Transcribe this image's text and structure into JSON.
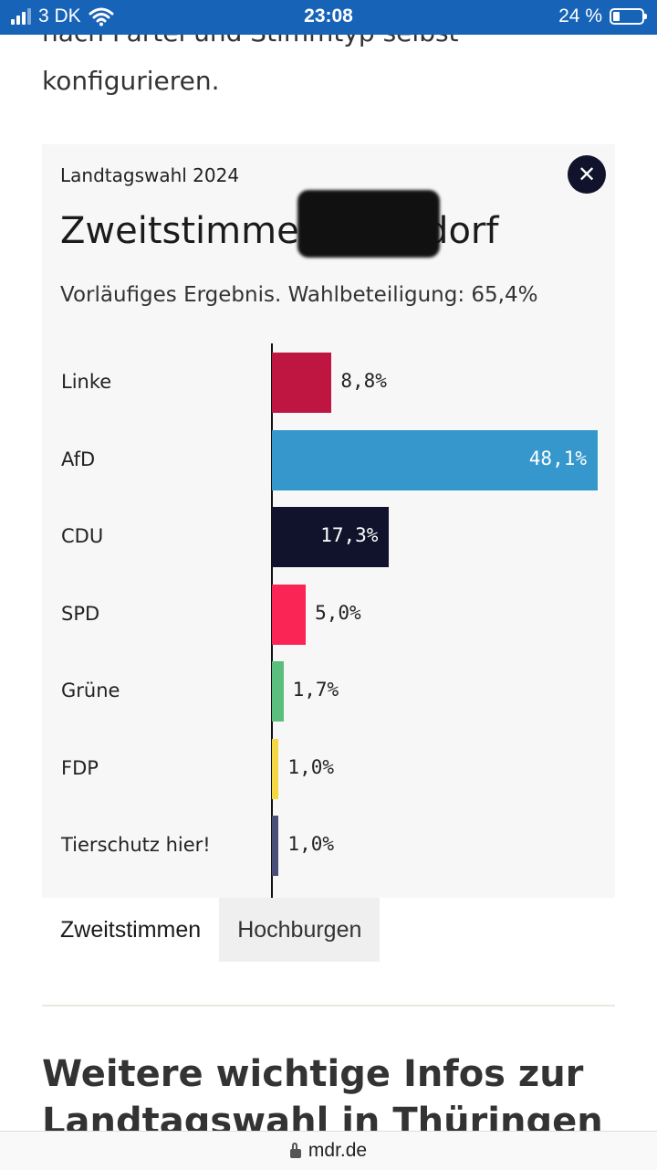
{
  "status_bar": {
    "carrier": "3 DK",
    "time": "23:08",
    "battery": "24 %"
  },
  "article": {
    "cut_line": "nach Partei und Stimmtyp selbst",
    "intro_line": "konfigurieren."
  },
  "widget": {
    "overline": "Landtagswahl 2024",
    "title": "Zweitstimmen Kühndorf",
    "subtitle": "Vorläufiges Ergebnis. Wahlbeteiligung: 65,4%",
    "close_icon": "close-icon"
  },
  "chart_data": {
    "type": "bar",
    "orientation": "horizontal",
    "categories": [
      "Linke",
      "AfD",
      "CDU",
      "SPD",
      "Grüne",
      "FDP",
      "Tierschutz hier!"
    ],
    "values": [
      8.8,
      48.1,
      17.3,
      5.0,
      1.7,
      1.0,
      1.0
    ],
    "value_labels": [
      "8,8%",
      "48,1%",
      "17,3%",
      "5,0%",
      "1,7%",
      "1,0%",
      "1,0%"
    ],
    "colors": [
      "#be1640",
      "#3597cb",
      "#10132b",
      "#fa2455",
      "#5bbe7e",
      "#f3d743",
      "#4a4f78"
    ],
    "label_inside": [
      false,
      true,
      true,
      false,
      false,
      false,
      false
    ],
    "xlim": [
      0,
      48.1
    ]
  },
  "tabs": [
    {
      "label": "Zweitstimmen",
      "active": true
    },
    {
      "label": "Hochburgen",
      "active": false
    }
  ],
  "section": {
    "heading": "Weitere wichtige Infos zur Landtagswahl in Thüringen"
  },
  "browser": {
    "url": "mdr.de"
  }
}
